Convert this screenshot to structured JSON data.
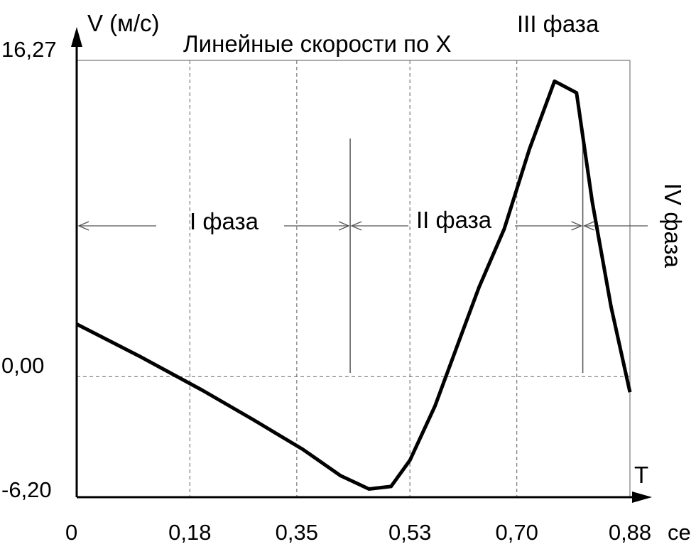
{
  "chart_data": {
    "type": "line",
    "title": "Линейные скорости по X",
    "ylabel": "V (м/с)",
    "xlabel": "T",
    "x_unit_fragment": "се",
    "x_ticks": [
      "0",
      "0,18",
      "0,35",
      "0,53",
      "0,70",
      "0,88"
    ],
    "x_tick_values": [
      0,
      0.18,
      0.35,
      0.53,
      0.7,
      0.88
    ],
    "y_ticks": [
      "16,27",
      "0,00",
      "-6,20"
    ],
    "y_tick_values": [
      16.27,
      0.0,
      -6.2
    ],
    "xlim": [
      0,
      0.88
    ],
    "ylim": [
      -6.2,
      16.27
    ],
    "grid": true,
    "series": [
      {
        "x": [
          0,
          0.1,
          0.2,
          0.28,
          0.36,
          0.42,
          0.465,
          0.5,
          0.53,
          0.57,
          0.61,
          0.64,
          0.68,
          0.72,
          0.76,
          0.795,
          0.82,
          0.85,
          0.88
        ],
        "values": [
          2.7,
          1.05,
          -0.7,
          -2.2,
          -3.75,
          -5.1,
          -5.78,
          -5.65,
          -4.3,
          -1.5,
          2.0,
          4.6,
          7.6,
          11.7,
          15.2,
          14.6,
          9.0,
          3.6,
          -0.8
        ]
      }
    ]
  },
  "phases": {
    "phase1": "I фаза",
    "phase2": "II фаза",
    "phase3": "III фаза",
    "phase4": "IV фаза"
  },
  "phase_boundaries": [
    0.435,
    0.805
  ],
  "phase1_start": 0,
  "phase4_end": 0.88
}
